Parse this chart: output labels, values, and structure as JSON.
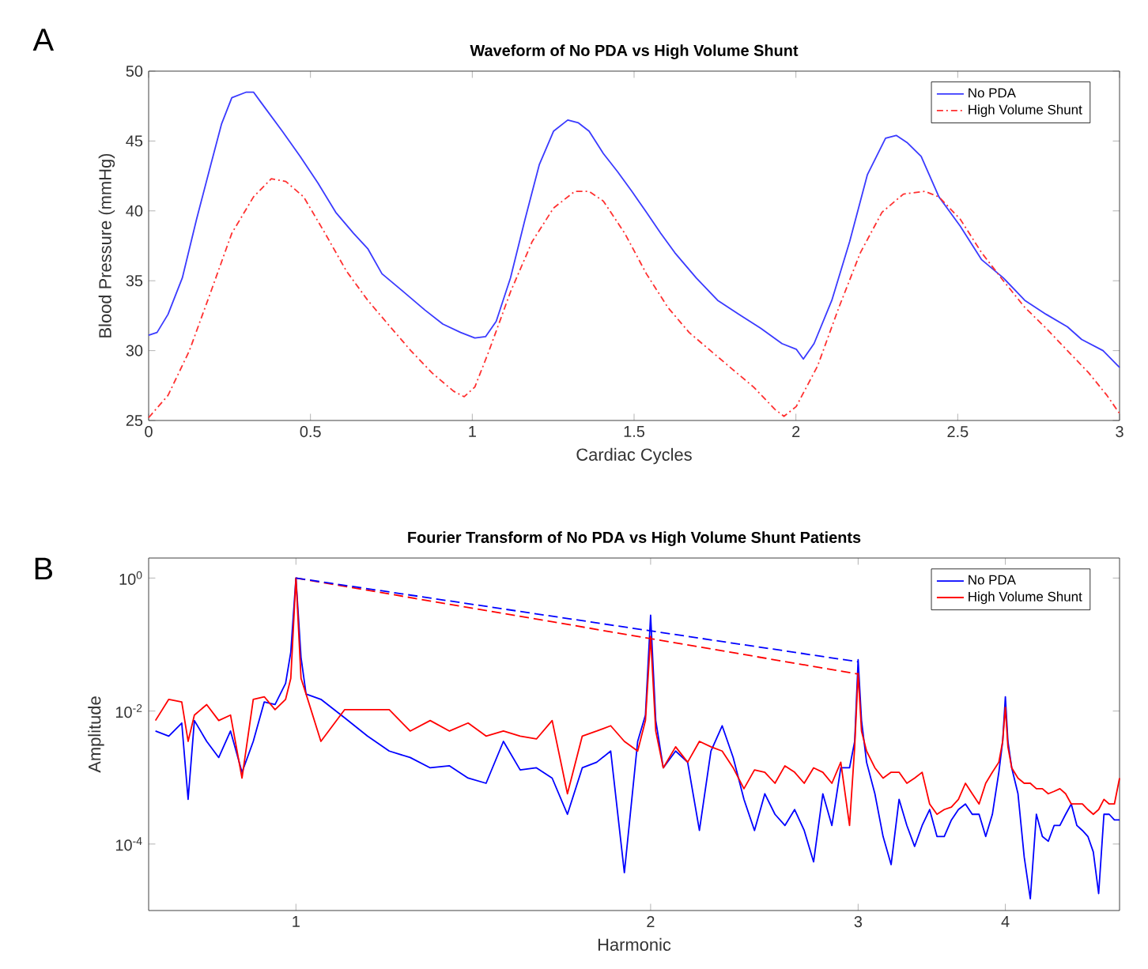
{
  "chart_data": [
    {
      "type": "line",
      "title": "Waveform of No PDA vs High Volume Shunt",
      "xlabel": "Cardiac Cycles",
      "ylabel": "Blood Pressure (mmHg)",
      "annotations": [
        "A"
      ],
      "xlim": [
        0,
        3
      ],
      "ylim": [
        25,
        50
      ],
      "xticks": [
        0,
        0.5,
        1,
        1.5,
        2,
        2.5,
        3
      ],
      "yticks": [
        25,
        30,
        35,
        40,
        45,
        50
      ],
      "legend": "top right",
      "series": [
        {
          "name": "No PDA",
          "color": "#3a3aff",
          "line_style": "solid",
          "x": [
            0.0,
            0.026,
            0.06,
            0.104,
            0.148,
            0.192,
            0.225,
            0.257,
            0.302,
            0.324,
            0.346,
            0.413,
            0.468,
            0.523,
            0.578,
            0.633,
            0.677,
            0.721,
            0.788,
            0.854,
            0.909,
            0.964,
            1.008,
            1.041,
            1.074,
            1.118,
            1.163,
            1.207,
            1.251,
            1.295,
            1.328,
            1.361,
            1.405,
            1.449,
            1.493,
            1.538,
            1.582,
            1.626,
            1.692,
            1.758,
            1.824,
            1.891,
            1.957,
            2.001,
            2.023,
            2.056,
            2.111,
            2.166,
            2.221,
            2.277,
            2.31,
            2.343,
            2.387,
            2.442,
            2.508,
            2.574,
            2.641,
            2.707,
            2.773,
            2.839,
            2.883,
            2.949,
            3.0
          ],
          "values": [
            31.1,
            31.3,
            32.6,
            35.2,
            39.4,
            43.3,
            46.2,
            48.1,
            48.5,
            48.5,
            47.8,
            45.7,
            43.9,
            42.0,
            39.9,
            38.4,
            37.3,
            35.5,
            34.2,
            32.9,
            31.9,
            31.3,
            30.9,
            31.0,
            32.1,
            35.2,
            39.4,
            43.3,
            45.7,
            46.5,
            46.3,
            45.7,
            44.1,
            42.8,
            41.4,
            39.9,
            38.4,
            37.0,
            35.2,
            33.6,
            32.6,
            31.6,
            30.5,
            30.1,
            29.4,
            30.5,
            33.6,
            37.8,
            42.6,
            45.2,
            45.4,
            44.9,
            43.9,
            41.0,
            38.9,
            36.5,
            35.2,
            33.6,
            32.6,
            31.7,
            30.8,
            30.0,
            28.8
          ]
        },
        {
          "name": "High Volume Shunt",
          "color": "#ff3030",
          "line_style": "dashdot",
          "x": [
            0.0,
            0.06,
            0.126,
            0.192,
            0.257,
            0.324,
            0.379,
            0.424,
            0.479,
            0.545,
            0.611,
            0.677,
            0.743,
            0.81,
            0.876,
            0.942,
            0.975,
            1.008,
            1.052,
            1.118,
            1.185,
            1.251,
            1.317,
            1.361,
            1.405,
            1.471,
            1.538,
            1.604,
            1.67,
            1.736,
            1.802,
            1.869,
            1.935,
            1.963,
            2.001,
            2.067,
            2.133,
            2.199,
            2.266,
            2.332,
            2.398,
            2.442,
            2.508,
            2.574,
            2.641,
            2.707,
            2.773,
            2.839,
            2.905,
            2.961,
            3.0
          ],
          "values": [
            25.2,
            26.8,
            30.0,
            34.2,
            38.4,
            41.0,
            42.3,
            42.1,
            41.0,
            38.4,
            35.7,
            33.6,
            31.8,
            30.0,
            28.4,
            27.1,
            26.7,
            27.4,
            30.0,
            34.2,
            37.8,
            40.2,
            41.4,
            41.4,
            40.7,
            38.4,
            35.5,
            33.1,
            31.3,
            30.0,
            28.7,
            27.4,
            25.8,
            25.3,
            26.0,
            28.9,
            33.1,
            37.0,
            39.9,
            41.2,
            41.4,
            41.0,
            39.4,
            37.0,
            35.0,
            33.1,
            31.6,
            30.0,
            28.4,
            26.8,
            25.5
          ]
        }
      ]
    },
    {
      "type": "line",
      "title": "Fourier Transform of No PDA vs High Volume Shunt Patients",
      "xlabel": "Harmonic",
      "ylabel": "Amplitude",
      "annotations": [
        "B"
      ],
      "log": "xy",
      "xlim": [
        0.75,
        5
      ],
      "ylim": [
        1e-05,
        2
      ],
      "xticks": [
        1,
        2,
        3,
        4
      ],
      "yticks": [
        {
          "value": 0.0001,
          "label": "10$^{-4}$"
        },
        {
          "value": 0.01,
          "label": "10$^{-2}$"
        },
        {
          "value": 1,
          "label": "10$^{0}$"
        }
      ],
      "legend": "top right",
      "x": [
        0.76,
        0.78,
        0.8,
        0.81,
        0.82,
        0.84,
        0.86,
        0.88,
        0.9,
        0.92,
        0.94,
        0.96,
        0.98,
        0.99,
        1.0,
        1.01,
        1.02,
        1.05,
        1.1,
        1.15,
        1.2,
        1.25,
        1.3,
        1.35,
        1.4,
        1.45,
        1.5,
        1.55,
        1.6,
        1.65,
        1.7,
        1.75,
        1.8,
        1.85,
        1.9,
        1.95,
        1.98,
        2.0,
        2.02,
        2.05,
        2.1,
        2.15,
        2.2,
        2.25,
        2.3,
        2.35,
        2.4,
        2.45,
        2.5,
        2.55,
        2.6,
        2.65,
        2.7,
        2.75,
        2.8,
        2.85,
        2.9,
        2.95,
        2.98,
        3.0,
        3.02,
        3.05,
        3.1,
        3.15,
        3.2,
        3.25,
        3.3,
        3.35,
        3.4,
        3.45,
        3.5,
        3.55,
        3.6,
        3.65,
        3.7,
        3.75,
        3.8,
        3.85,
        3.9,
        3.95,
        3.98,
        4.0,
        4.02,
        4.05,
        4.1,
        4.15,
        4.2,
        4.25,
        4.3,
        4.35,
        4.4,
        4.45,
        4.5,
        4.55,
        4.6,
        4.65,
        4.7,
        4.75,
        4.8,
        4.85,
        4.9,
        4.95,
        5.0
      ],
      "series": [
        {
          "name": "No PDA",
          "color": "#0000ff",
          "line_style": "solid",
          "values": [
            0.005,
            0.0042,
            0.0066,
            0.00047,
            0.0072,
            0.0035,
            0.002,
            0.005,
            0.0012,
            0.0035,
            0.0137,
            0.0125,
            0.026,
            0.077,
            1,
            0.064,
            0.018,
            0.015,
            0.0079,
            0.0042,
            0.0025,
            0.002,
            0.0014,
            0.0015,
            0.00098,
            0.00082,
            0.0035,
            0.0013,
            0.0014,
            0.00098,
            0.00028,
            0.0014,
            0.0017,
            0.0025,
            3.7e-05,
            0.0035,
            0.0087,
            0.275,
            0.0072,
            0.0014,
            0.0025,
            0.0017,
            0.00016,
            0.0025,
            0.006,
            0.002,
            0.00047,
            0.00016,
            0.00057,
            0.00028,
            0.00019,
            0.00033,
            0.00016,
            5.4e-05,
            0.00057,
            0.00019,
            0.0014,
            0.0014,
            0.0035,
            0.059,
            0.0072,
            0.0017,
            0.00057,
            0.00013,
            4.9e-05,
            0.00047,
            0.00019,
            9.2e-05,
            0.00019,
            0.00033,
            0.00013,
            0.00013,
            0.00023,
            0.00033,
            0.0004,
            0.00028,
            0.00028,
            0.00013,
            0.00028,
            0.0012,
            0.0035,
            0.0164,
            0.0035,
            0.0014,
            0.00057,
            6.4e-05,
            1.5e-05,
            0.00028,
            0.00013,
            0.00011,
            0.00019,
            0.00019,
            0.00028,
            0.0004,
            0.00019,
            0.00016,
            0.00013,
            7.6e-05,
            1.8e-05,
            0.00028,
            0.00028,
            0.00023,
            0.00023
          ]
        },
        {
          "name": "High Volume Shunt",
          "color": "#ff0000",
          "line_style": "solid",
          "values": [
            0.0072,
            0.015,
            0.0137,
            0.0035,
            0.0087,
            0.0125,
            0.0072,
            0.0087,
            0.00098,
            0.015,
            0.0164,
            0.0105,
            0.015,
            0.031,
            1,
            0.031,
            0.018,
            0.0035,
            0.0105,
            0.0105,
            0.0105,
            0.005,
            0.0072,
            0.005,
            0.0066,
            0.0042,
            0.005,
            0.0042,
            0.0038,
            0.0072,
            0.00057,
            0.0042,
            0.005,
            0.006,
            0.0035,
            0.0025,
            0.0072,
            0.133,
            0.005,
            0.0014,
            0.0029,
            0.0017,
            0.0035,
            0.0029,
            0.0025,
            0.0014,
            0.00068,
            0.0013,
            0.0012,
            0.00082,
            0.0015,
            0.0012,
            0.00082,
            0.0014,
            0.0012,
            0.00082,
            0.0017,
            0.00019,
            0.0029,
            0.037,
            0.005,
            0.0025,
            0.0014,
            0.00098,
            0.0012,
            0.0012,
            0.00082,
            0.00098,
            0.0012,
            0.0004,
            0.00028,
            0.00033,
            0.00036,
            0.00047,
            0.00082,
            0.00057,
            0.0004,
            0.00082,
            0.0012,
            0.0017,
            0.0035,
            0.0114,
            0.0029,
            0.0014,
            0.00098,
            0.00082,
            0.00082,
            0.00068,
            0.00068,
            0.00057,
            0.00062,
            0.00068,
            0.00057,
            0.0004,
            0.0004,
            0.0004,
            0.00033,
            0.00028,
            0.00033,
            0.00047,
            0.0004,
            0.0004,
            0.00098
          ]
        },
        {
          "color": "#ff0000",
          "line_style": "dashed",
          "x": [
            1,
            3
          ],
          "values": [
            1,
            0.036
          ]
        },
        {
          "color": "#0000ff",
          "line_style": "dashed",
          "x": [
            1,
            3
          ],
          "values": [
            1,
            0.055
          ]
        }
      ]
    }
  ]
}
